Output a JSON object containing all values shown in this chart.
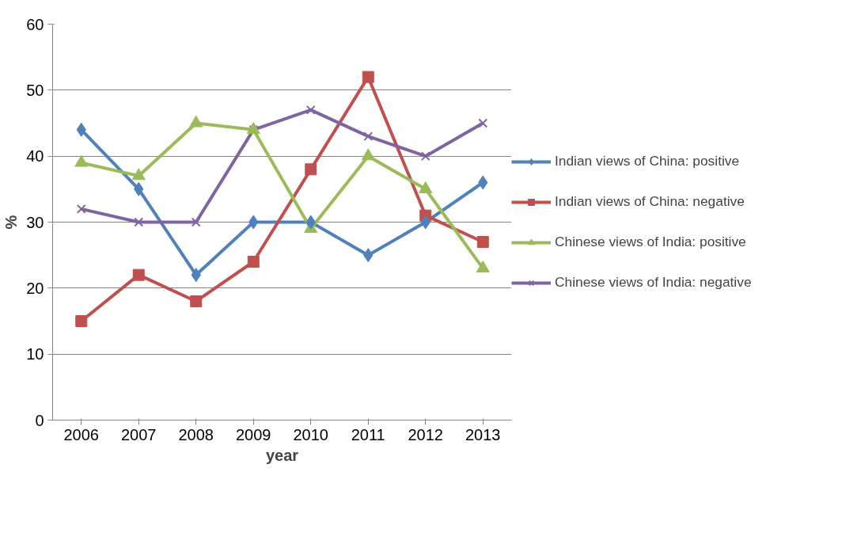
{
  "chart_data": {
    "type": "line",
    "xlabel": "year",
    "ylabel": "%",
    "categories": [
      "2006",
      "2007",
      "2008",
      "2009",
      "2010",
      "2011",
      "2012",
      "2013"
    ],
    "series": [
      {
        "name": "Indian views of China: positive",
        "color": "#4f81bd",
        "marker": "diamond",
        "values": [
          44,
          35,
          22,
          30,
          30,
          25,
          30,
          36
        ]
      },
      {
        "name": "Indian views of China: negative",
        "color": "#c0504d",
        "marker": "square",
        "values": [
          15,
          22,
          18,
          24,
          38,
          52,
          31,
          27
        ]
      },
      {
        "name": "Chinese views of India: positive",
        "color": "#9bbb59",
        "marker": "triangle",
        "values": [
          39,
          37,
          45,
          44,
          29,
          40,
          35,
          23
        ]
      },
      {
        "name": "Chinese views of India: negative",
        "color": "#8064a2",
        "marker": "cross",
        "values": [
          32,
          30,
          30,
          44,
          47,
          43,
          40,
          45
        ]
      }
    ],
    "ylim": [
      0,
      60
    ],
    "yticks": [
      0,
      10,
      20,
      30,
      40,
      50,
      60
    ],
    "grid": "y",
    "legend": "right"
  }
}
